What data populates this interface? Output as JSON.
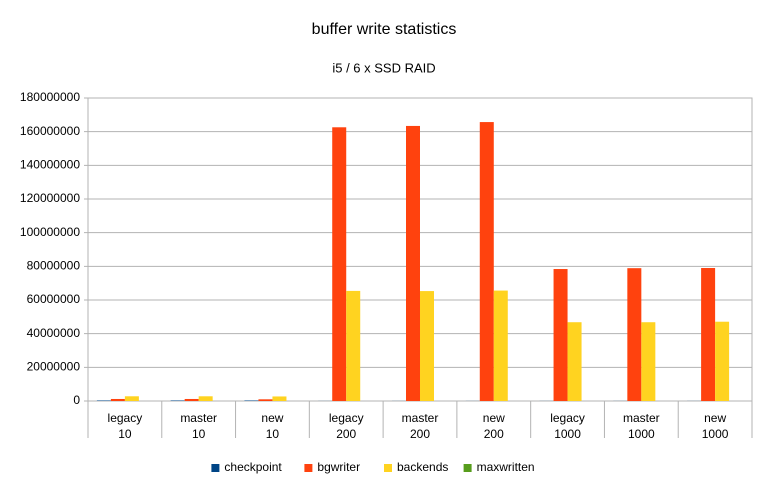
{
  "chart_data": {
    "type": "bar",
    "title": "buffer write statistics",
    "subtitle": "i5 / 6 x SSD RAID",
    "categories": [
      [
        "legacy",
        "10"
      ],
      [
        "master",
        "10"
      ],
      [
        "new",
        "10"
      ],
      [
        "legacy",
        "200"
      ],
      [
        "master",
        "200"
      ],
      [
        "new",
        "200"
      ],
      [
        "legacy",
        "1000"
      ],
      [
        "master",
        "1000"
      ],
      [
        "new",
        "1000"
      ]
    ],
    "series": [
      {
        "name": "checkpoint",
        "color": "#004586",
        "values": [
          300000,
          300000,
          300000,
          50000,
          50000,
          50000,
          50000,
          50000,
          50000
        ]
      },
      {
        "name": "bgwriter",
        "color": "#ff420e",
        "values": [
          1200000,
          1200000,
          1000000,
          162600000,
          163400000,
          165700000,
          78400000,
          78900000,
          79000000
        ]
      },
      {
        "name": "backends",
        "color": "#ffd320",
        "values": [
          2800000,
          2800000,
          2700000,
          65400000,
          65300000,
          65600000,
          46800000,
          46800000,
          47100000
        ]
      },
      {
        "name": "maxwritten",
        "color": "#579d1c",
        "values": [
          0,
          0,
          0,
          0,
          0,
          0,
          0,
          0,
          0
        ]
      }
    ],
    "ylim": [
      0,
      180000000
    ],
    "yticks": [
      0,
      20000000,
      40000000,
      60000000,
      80000000,
      100000000,
      120000000,
      140000000,
      160000000,
      180000000
    ],
    "grid": true,
    "legend": "bottom"
  }
}
